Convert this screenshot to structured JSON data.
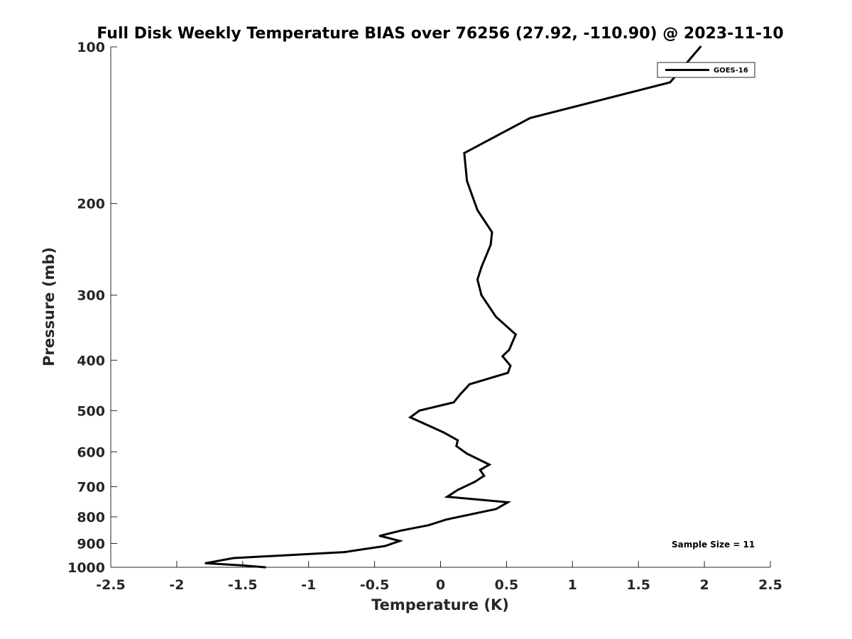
{
  "chart_data": {
    "type": "line",
    "title": "Full Disk Weekly Temperature BIAS over 76256 (27.92, -110.90) @ 2023-11-10",
    "xlabel": "Temperature (K)",
    "ylabel": "Pressure (mb)",
    "xlim": [
      -2.5,
      2.5
    ],
    "ylim": [
      100,
      1000
    ],
    "y_scale": "log",
    "y_reversed": true,
    "grid": false,
    "x_ticks": [
      -2.5,
      -2,
      -1.5,
      -1,
      -0.5,
      0,
      0.5,
      1,
      1.5,
      2,
      2.5
    ],
    "x_tick_labels": [
      "-2.5",
      "-2",
      "-1.5",
      "-1",
      "-0.5",
      "0",
      "0.5",
      "1",
      "1.5",
      "2",
      "2.5"
    ],
    "y_ticks": [
      100,
      200,
      300,
      400,
      500,
      600,
      700,
      800,
      900,
      1000
    ],
    "y_tick_labels": [
      "100",
      "200",
      "300",
      "400",
      "500",
      "600",
      "700",
      "800",
      "900",
      "1000"
    ],
    "legend": {
      "placement": "top-right",
      "entries": [
        "GOES-16"
      ]
    },
    "annotation": "Sample Size = 11",
    "line_color": "#000000",
    "series": [
      {
        "name": "GOES-16",
        "points": [
          [
            1.97,
            100
          ],
          [
            1.74,
            117
          ],
          [
            0.68,
            137
          ],
          [
            0.18,
            160
          ],
          [
            0.2,
            181
          ],
          [
            0.28,
            206
          ],
          [
            0.39,
            227
          ],
          [
            0.38,
            240
          ],
          [
            0.31,
            265
          ],
          [
            0.28,
            280
          ],
          [
            0.31,
            300
          ],
          [
            0.42,
            330
          ],
          [
            0.57,
            357
          ],
          [
            0.52,
            382
          ],
          [
            0.47,
            393
          ],
          [
            0.53,
            410
          ],
          [
            0.51,
            423
          ],
          [
            0.22,
            445
          ],
          [
            0.15,
            465
          ],
          [
            0.1,
            482
          ],
          [
            -0.16,
            500
          ],
          [
            -0.23,
            515
          ],
          [
            0.02,
            550
          ],
          [
            0.13,
            570
          ],
          [
            0.12,
            585
          ],
          [
            0.2,
            605
          ],
          [
            0.37,
            635
          ],
          [
            0.3,
            650
          ],
          [
            0.33,
            667
          ],
          [
            0.26,
            685
          ],
          [
            0.13,
            710
          ],
          [
            0.05,
            732
          ],
          [
            0.51,
            750
          ],
          [
            0.42,
            773
          ],
          [
            0.04,
            810
          ],
          [
            -0.09,
            830
          ],
          [
            -0.3,
            850
          ],
          [
            -0.46,
            870
          ],
          [
            -0.31,
            890
          ],
          [
            -0.42,
            910
          ],
          [
            -0.73,
            935
          ],
          [
            -1.57,
            960
          ],
          [
            -1.78,
            982
          ],
          [
            -1.5,
            992
          ],
          [
            -1.33,
            1000
          ]
        ]
      }
    ]
  }
}
